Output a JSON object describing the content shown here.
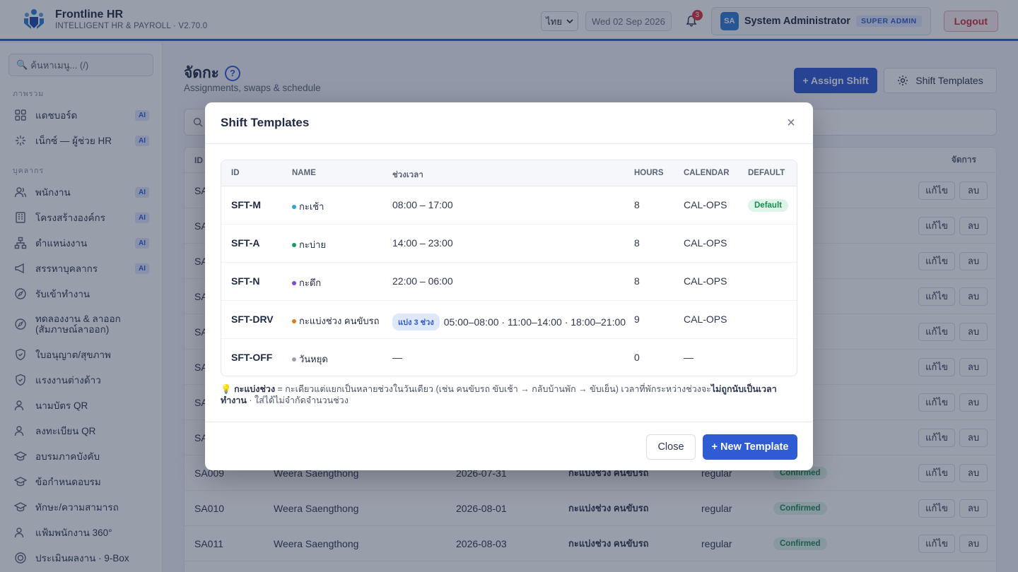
{
  "header": {
    "app_name": "Frontline HR",
    "app_subtitle": "INTELLIGENT HR & PAYROLL · V2.70.0",
    "language": "ไทย",
    "date": "Wed 02 Sep 2026",
    "notification_count": "3",
    "user_initials": "SA",
    "user_name": "System Administrator",
    "user_role": "SUPER ADMIN",
    "logout_label": "Logout"
  },
  "sidebar": {
    "search_placeholder": "ค้นหาเมนู... (/)",
    "section_overview": "ภาพรวม",
    "section_people": "บุคลากร",
    "items": [
      {
        "label": "แดชบอร์ด",
        "ai": "AI"
      },
      {
        "label": "เน็กซ์ — ผู้ช่วย HR",
        "ai": "AI"
      },
      {
        "label": "พนักงาน",
        "ai": "AI"
      },
      {
        "label": "โครงสร้างองค์กร",
        "ai": "AI"
      },
      {
        "label": "ตำแหน่งงาน",
        "ai": "AI"
      },
      {
        "label": "สรรหาบุคลากร",
        "ai": "AI"
      },
      {
        "label": "รับเข้าทำงาน"
      },
      {
        "label": "ทดลองงาน & ลาออก (สัมภาษณ์ลาออก)"
      },
      {
        "label": "ใบอนุญาต/สุขภาพ"
      },
      {
        "label": "แรงงานต่างด้าว"
      },
      {
        "label": "นามบัตร QR"
      },
      {
        "label": "ลงทะเบียน QR"
      },
      {
        "label": "อบรมภาคบังคับ"
      },
      {
        "label": "ข้อกำหนดอบรม"
      },
      {
        "label": "ทักษะ/ความสามารถ"
      },
      {
        "label": "แฟ้มพนักงาน 360°"
      },
      {
        "label": "ประเมินผลงาน · 9-Box"
      }
    ]
  },
  "page": {
    "title": "จัดกะ",
    "help": "?",
    "subtitle": "Assignments, swaps & schedule",
    "assign_label": "+ Assign Shift",
    "templates_label": "Shift Templates"
  },
  "background_table": {
    "header_id": "ID",
    "header_action": "จัดการ",
    "edit_label": "แก้ไข",
    "delete_label": "ลบ",
    "rows": [
      {
        "id": "SA",
        "name": "",
        "date": "",
        "shift": "",
        "type": "",
        "status": "ed"
      },
      {
        "id": "SA",
        "name": "",
        "date": "",
        "shift": "",
        "type": "",
        "status": "ed"
      },
      {
        "id": "SA",
        "name": "",
        "date": "",
        "shift": "",
        "type": "",
        "status": "ed"
      },
      {
        "id": "SA",
        "name": "",
        "date": "",
        "shift": "",
        "type": "",
        "status": "ed"
      },
      {
        "id": "SA",
        "name": "",
        "date": "",
        "shift": "",
        "type": "",
        "status": "ed"
      },
      {
        "id": "SA",
        "name": "",
        "date": "",
        "shift": "",
        "type": "",
        "status": "ed"
      },
      {
        "id": "SA",
        "name": "",
        "date": "",
        "shift": "",
        "type": "",
        "status": "ed"
      },
      {
        "id": "SA",
        "name": "",
        "date": "",
        "shift": "",
        "type": "",
        "status": "ed"
      },
      {
        "id": "SA009",
        "name": "Weera Saengthong",
        "date": "2026-07-31",
        "shift": "กะแบ่งช่วง คนขับรถ",
        "type": "regular",
        "status": "Confirmed"
      },
      {
        "id": "SA010",
        "name": "Weera Saengthong",
        "date": "2026-08-01",
        "shift": "กะแบ่งช่วง คนขับรถ",
        "type": "regular",
        "status": "Confirmed"
      },
      {
        "id": "SA011",
        "name": "Weera Saengthong",
        "date": "2026-08-03",
        "shift": "กะแบ่งช่วง คนขับรถ",
        "type": "regular",
        "status": "Confirmed"
      }
    ]
  },
  "modal": {
    "title": "Shift Templates",
    "close_x": "×",
    "columns": {
      "id": "ID",
      "name": "NAME",
      "time": "ช่วงเวลา",
      "hours": "HOURS",
      "calendar": "CALENDAR",
      "default": "DEFAULT"
    },
    "rows": [
      {
        "id": "SFT-M",
        "name": "กะเช้า",
        "dot_color": "#2aa7d6",
        "time": "08:00 – 17:00",
        "split": "",
        "hours": "8",
        "calendar": "CAL-OPS",
        "default": "Default"
      },
      {
        "id": "SFT-A",
        "name": "กะบ่าย",
        "dot_color": "#1d9a62",
        "time": "14:00 – 23:00",
        "split": "",
        "hours": "8",
        "calendar": "CAL-OPS",
        "default": ""
      },
      {
        "id": "SFT-N",
        "name": "กะดึก",
        "dot_color": "#7b4bd6",
        "time": "22:00 – 06:00",
        "split": "",
        "hours": "8",
        "calendar": "CAL-OPS",
        "default": ""
      },
      {
        "id": "SFT-DRV",
        "name": "กะแบ่งช่วง คนขับรถ",
        "dot_color": "#e07b1a",
        "time": "05:00–08:00 · 11:00–14:00 · 18:00–21:00",
        "split": "แบ่ง 3 ช่วง",
        "hours": "9",
        "calendar": "CAL-OPS",
        "default": ""
      },
      {
        "id": "SFT-OFF",
        "name": "วันหยุด",
        "dot_color": "#9aa1ad",
        "time": "—",
        "split": "",
        "hours": "0",
        "calendar": "—",
        "default": ""
      }
    ],
    "tip_icon": "💡",
    "tip_bold": "กะแบ่งช่วง",
    "tip_text": " = กะเดียวแต่แยกเป็นหลายช่วงในวันเดียว (เช่น คนขับรถ ขับเช้า → กลับบ้านพัก → ขับเย็น) เวลาที่พักระหว่างช่วงจะ",
    "tip_bold2": "ไม่ถูกนับเป็นเวลาทำงาน",
    "tip_text2": " · ใส่ได้ไม่จำกัดจำนวนช่วง",
    "close_label": "Close",
    "new_label": "+ New Template"
  }
}
